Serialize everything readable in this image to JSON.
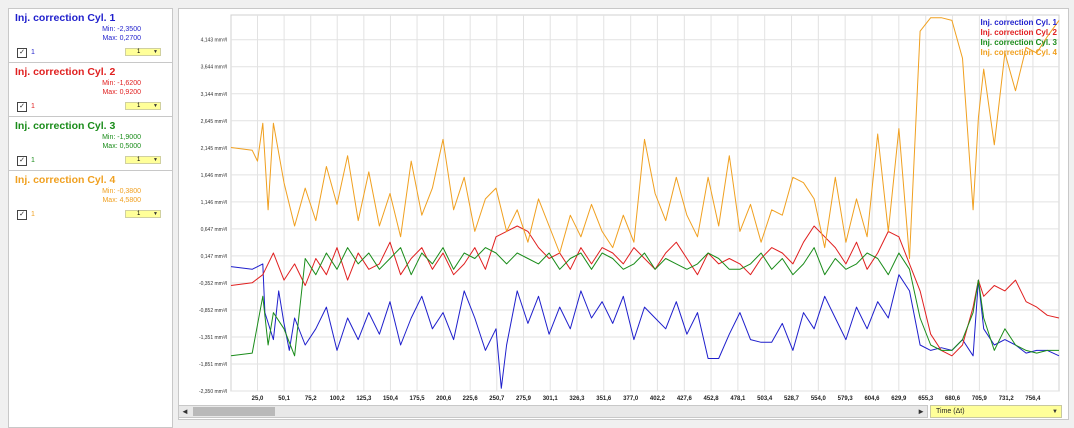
{
  "channels": [
    {
      "title": "Inj. correction Cyl. 1",
      "min": "Min: -2,3500",
      "max": "Max: 0,2700",
      "enabled_label": "1",
      "scale": "1",
      "color": "#1f1fcc",
      "minmax_color": "#1f1fcc"
    },
    {
      "title": "Inj. correction Cyl. 2",
      "min": "Min: -1,6200",
      "max": "Max: 0,9200",
      "enabled_label": "1",
      "scale": "1",
      "color": "#e02020",
      "minmax_color": "#e02020"
    },
    {
      "title": "Inj. correction Cyl. 3",
      "min": "Min: -1,9000",
      "max": "Max: 0,5000",
      "enabled_label": "1",
      "scale": "1",
      "color": "#1a8c1a",
      "minmax_color": "#1a8c1a"
    },
    {
      "title": "Inj. correction Cyl. 4",
      "min": "Min: -0,3800",
      "max": "Max: 4,5800",
      "enabled_label": "1",
      "scale": "1",
      "color": "#f0a020",
      "minmax_color": "#f0a020"
    }
  ],
  "xaxis_selector": {
    "label": "Time (Δt)"
  },
  "scroll": {
    "left": "◄",
    "right": "►"
  },
  "chart_data": {
    "type": "line",
    "title": "",
    "xlabel": "Time (Δt)",
    "ylabel": "",
    "xlim": [
      0,
      781
    ],
    "ylim": [
      -2.35,
      4.6
    ],
    "grid": true,
    "legend_position": "top-right",
    "y_ticks": [
      "4,143 mm³/l",
      "3,644 mm³/l",
      "3,144 mm³/l",
      "2,645 mm³/l",
      "2,145 mm³/l",
      "1,646 mm³/l",
      "1,146 mm³/l",
      "0,647 mm³/l",
      "0,147 mm³/l",
      "-0,352 mm³/l",
      "-0,852 mm³/l",
      "-1,351 mm³/l",
      "-1,851 mm³/l",
      "-2,350 mm³/l"
    ],
    "y_tick_values": [
      4.143,
      3.644,
      3.144,
      2.645,
      2.145,
      1.646,
      1.146,
      0.647,
      0.147,
      -0.352,
      -0.852,
      -1.351,
      -1.851,
      -2.35
    ],
    "x_ticks": [
      "25,0",
      "50,1",
      "75,2",
      "100,2",
      "125,3",
      "150,4",
      "175,5",
      "200,6",
      "225,6",
      "250,7",
      "275,9",
      "301,1",
      "326,3",
      "351,6",
      "377,0",
      "402,2",
      "427,6",
      "452,8",
      "478,1",
      "503,4",
      "528,7",
      "554,0",
      "579,3",
      "604,6",
      "629,9",
      "655,3",
      "680,6",
      "705,9",
      "731,2",
      "756,4"
    ],
    "x_tick_values": [
      25.0,
      50.1,
      75.2,
      100.2,
      125.3,
      150.4,
      175.5,
      200.6,
      225.6,
      250.7,
      275.9,
      301.1,
      326.3,
      351.6,
      377.0,
      402.2,
      427.6,
      452.8,
      478.1,
      503.4,
      528.7,
      554.0,
      579.3,
      604.6,
      629.9,
      655.3,
      680.6,
      705.9,
      731.2,
      756.4
    ],
    "series": [
      {
        "name": "Inj. correction Cyl. 1",
        "color": "#1f1fcc",
        "x": [
          0,
          20,
          30,
          32,
          40,
          45,
          50,
          55,
          60,
          70,
          80,
          90,
          100,
          110,
          120,
          130,
          140,
          150,
          160,
          170,
          180,
          190,
          200,
          210,
          220,
          230,
          240,
          250,
          255,
          260,
          270,
          280,
          290,
          300,
          310,
          320,
          330,
          340,
          350,
          360,
          370,
          380,
          390,
          400,
          410,
          420,
          430,
          440,
          450,
          460,
          470,
          480,
          490,
          500,
          510,
          520,
          530,
          540,
          550,
          560,
          570,
          580,
          590,
          600,
          610,
          620,
          630,
          640,
          650,
          660,
          670,
          680,
          690,
          700,
          705,
          710,
          720,
          730,
          740,
          750,
          760,
          770,
          781
        ],
        "y": [
          -0.05,
          -0.1,
          0.0,
          -0.9,
          -1.4,
          -0.5,
          -1.1,
          -1.6,
          -1.0,
          -1.5,
          -1.2,
          -0.8,
          -1.6,
          -1.0,
          -1.4,
          -0.9,
          -1.3,
          -0.7,
          -1.5,
          -1.0,
          -0.6,
          -1.2,
          -0.9,
          -1.4,
          -0.5,
          -1.0,
          -1.6,
          -1.2,
          -2.3,
          -1.5,
          -0.5,
          -1.1,
          -0.6,
          -1.3,
          -0.8,
          -1.2,
          -0.5,
          -1.0,
          -0.7,
          -1.1,
          -0.6,
          -1.4,
          -0.8,
          -1.0,
          -1.2,
          -0.7,
          -1.3,
          -0.9,
          -1.75,
          -1.75,
          -1.3,
          -0.9,
          -1.4,
          -1.45,
          -1.45,
          -1.1,
          -1.6,
          -0.9,
          -1.2,
          -0.6,
          -1.0,
          -1.4,
          -0.8,
          -1.2,
          -0.7,
          -1.0,
          -0.2,
          -0.5,
          -1.5,
          -1.6,
          -1.55,
          -1.6,
          -1.4,
          -1.7,
          -0.3,
          -1.2,
          -1.5,
          -1.4,
          -1.5,
          -1.65,
          -1.6,
          -1.6,
          -1.7
        ]
      },
      {
        "name": "Inj. correction Cyl. 2",
        "color": "#e02020",
        "x": [
          0,
          20,
          30,
          40,
          50,
          60,
          70,
          80,
          90,
          100,
          110,
          120,
          130,
          140,
          150,
          160,
          170,
          180,
          190,
          200,
          210,
          220,
          230,
          240,
          250,
          260,
          270,
          280,
          290,
          300,
          310,
          320,
          330,
          340,
          350,
          360,
          370,
          380,
          390,
          400,
          410,
          420,
          430,
          440,
          450,
          460,
          470,
          480,
          490,
          500,
          510,
          520,
          530,
          540,
          550,
          560,
          570,
          580,
          590,
          600,
          610,
          620,
          630,
          640,
          650,
          660,
          670,
          680,
          690,
          700,
          705,
          710,
          720,
          730,
          740,
          750,
          760,
          770,
          781
        ],
        "y": [
          -0.4,
          -0.35,
          -0.2,
          0.2,
          -0.3,
          0.0,
          -0.4,
          0.1,
          -0.2,
          0.3,
          -0.3,
          0.2,
          -0.1,
          0.0,
          0.4,
          -0.2,
          0.1,
          0.3,
          -0.1,
          0.2,
          -0.2,
          0.0,
          0.3,
          -0.1,
          0.5,
          0.6,
          0.7,
          0.6,
          0.3,
          0.1,
          0.2,
          -0.1,
          0.3,
          0.0,
          0.3,
          0.2,
          0.0,
          0.3,
          0.1,
          -0.1,
          0.2,
          0.4,
          0.1,
          -0.2,
          0.2,
          0.0,
          0.1,
          0.0,
          -0.2,
          0.1,
          0.3,
          0.2,
          0.0,
          0.4,
          0.7,
          0.5,
          0.3,
          0.0,
          0.4,
          -0.1,
          0.2,
          0.6,
          0.5,
          0.0,
          -0.5,
          -1.3,
          -1.6,
          -1.7,
          -1.5,
          -0.8,
          -0.3,
          -0.6,
          -0.4,
          -0.5,
          -0.3,
          -0.7,
          -0.8,
          -0.95,
          -1.0
        ]
      },
      {
        "name": "Inj. correction Cyl. 3",
        "color": "#1a8c1a",
        "x": [
          0,
          20,
          30,
          35,
          40,
          50,
          60,
          70,
          80,
          90,
          100,
          110,
          120,
          130,
          140,
          150,
          160,
          170,
          180,
          190,
          200,
          210,
          220,
          230,
          240,
          250,
          260,
          270,
          280,
          290,
          300,
          310,
          320,
          330,
          340,
          350,
          360,
          370,
          380,
          390,
          400,
          410,
          420,
          430,
          440,
          450,
          460,
          470,
          480,
          490,
          500,
          510,
          520,
          530,
          540,
          550,
          560,
          570,
          580,
          590,
          600,
          610,
          620,
          630,
          640,
          650,
          660,
          670,
          680,
          690,
          700,
          705,
          710,
          720,
          730,
          740,
          750,
          760,
          770,
          781
        ],
        "y": [
          -1.7,
          -1.65,
          -0.6,
          -1.5,
          -0.9,
          -1.2,
          -1.7,
          0.1,
          -0.2,
          0.2,
          -0.1,
          0.3,
          0.0,
          0.2,
          -0.1,
          0.1,
          0.3,
          -0.2,
          0.2,
          0.0,
          0.3,
          -0.1,
          0.2,
          0.1,
          0.3,
          0.2,
          0.0,
          0.2,
          0.1,
          0.0,
          0.2,
          -0.1,
          0.1,
          0.2,
          -0.1,
          0.2,
          0.1,
          -0.1,
          0.0,
          0.2,
          -0.1,
          0.1,
          0.0,
          -0.1,
          0.0,
          0.2,
          0.1,
          -0.1,
          -0.1,
          0.0,
          0.2,
          -0.1,
          0.1,
          -0.2,
          0.0,
          0.3,
          -0.2,
          0.1,
          -0.1,
          0.0,
          0.2,
          0.1,
          -0.2,
          0.2,
          -0.1,
          -1.0,
          -1.5,
          -1.6,
          -1.6,
          -1.4,
          -0.9,
          -0.3,
          -1.0,
          -1.6,
          -1.2,
          -1.5,
          -1.6,
          -1.65,
          -1.6,
          -1.6
        ]
      },
      {
        "name": "Inj. correction Cyl. 4",
        "color": "#f0a020",
        "x": [
          0,
          20,
          25,
          30,
          35,
          40,
          50,
          60,
          70,
          80,
          90,
          100,
          110,
          120,
          130,
          140,
          150,
          160,
          170,
          180,
          190,
          200,
          210,
          220,
          230,
          240,
          250,
          260,
          270,
          280,
          290,
          300,
          310,
          320,
          330,
          340,
          350,
          360,
          370,
          380,
          390,
          400,
          410,
          420,
          430,
          440,
          450,
          460,
          470,
          480,
          490,
          500,
          510,
          520,
          530,
          540,
          550,
          560,
          570,
          580,
          590,
          600,
          610,
          620,
          630,
          640,
          650,
          660,
          670,
          680,
          690,
          700,
          705,
          710,
          720,
          730,
          740,
          750,
          760,
          770,
          781
        ],
        "y": [
          2.15,
          2.1,
          1.9,
          2.6,
          1.0,
          2.6,
          1.5,
          0.7,
          1.4,
          0.8,
          1.8,
          1.1,
          2.0,
          0.8,
          1.7,
          0.7,
          1.3,
          0.5,
          1.9,
          0.9,
          1.4,
          2.3,
          1.0,
          1.6,
          0.6,
          1.2,
          1.4,
          0.6,
          1.0,
          0.4,
          1.2,
          0.7,
          0.2,
          0.9,
          0.5,
          1.1,
          0.6,
          0.3,
          0.9,
          0.4,
          2.3,
          1.3,
          0.8,
          1.6,
          0.9,
          0.5,
          1.6,
          0.7,
          2.0,
          0.6,
          1.1,
          0.4,
          1.0,
          0.9,
          1.6,
          1.5,
          1.2,
          0.3,
          1.6,
          0.4,
          1.2,
          0.5,
          2.4,
          0.6,
          2.5,
          0.1,
          4.3,
          4.55,
          4.55,
          4.5,
          3.8,
          1.0,
          2.7,
          3.6,
          2.2,
          3.9,
          3.2,
          4.0,
          3.9,
          4.2,
          4.5
        ]
      }
    ]
  }
}
